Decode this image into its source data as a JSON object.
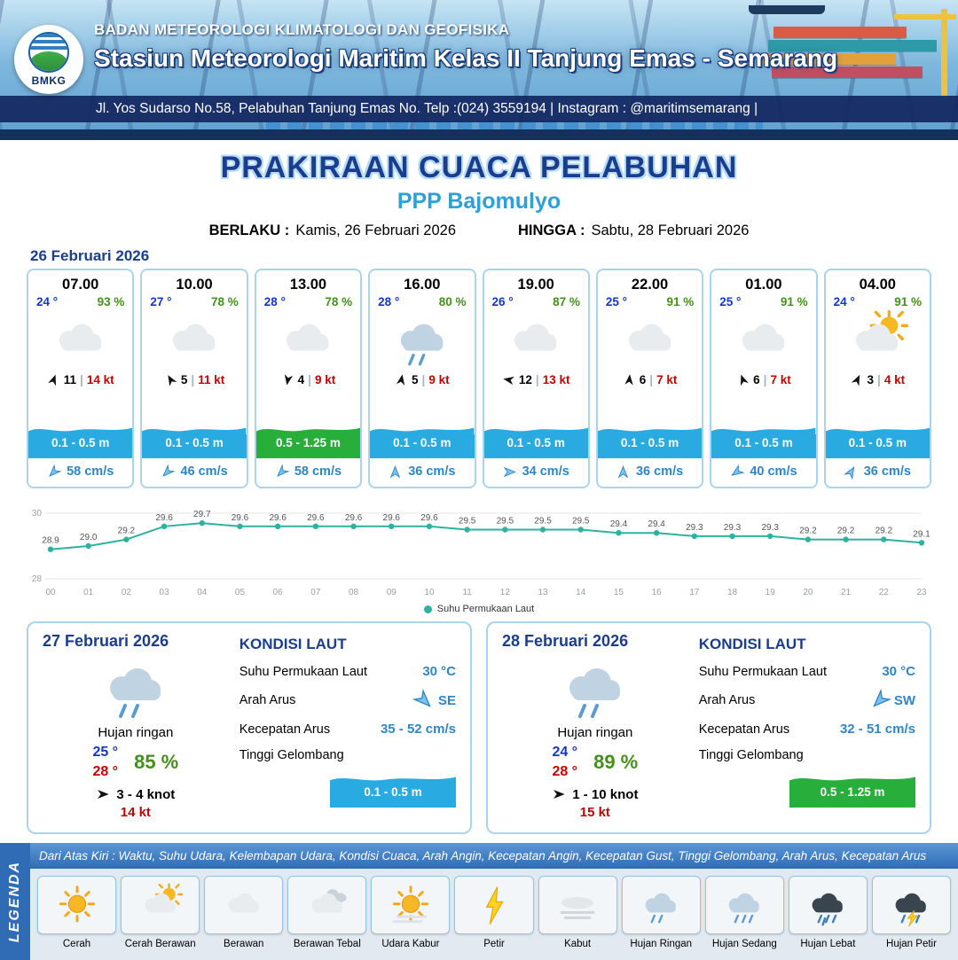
{
  "header": {
    "logo_text": "BMKG",
    "line1": "BADAN METEOROLOGI KLIMATOLOGI DAN GEOFISIKA",
    "line2": "Stasiun Meteorologi Maritim Kelas II Tanjung Emas - Semarang",
    "line3": "Jl. Yos Sudarso No.58, Pelabuhan Tanjung Emas No. Telp :(024) 3559194 | Instagram : @maritimsemarang |"
  },
  "title": {
    "main": "PRAKIRAAN CUACA PELABUHAN",
    "port": "PPP Bajomulyo",
    "berlaku_label": "BERLAKU :",
    "berlaku_value": "Kamis, 26 Februari 2026",
    "hingga_label": "HINGGA :",
    "hingga_value": "Sabtu, 28 Februari 2026"
  },
  "ui": {
    "pipe": "|"
  },
  "forecast": {
    "date_label": "26 Februari 2026",
    "cards": [
      {
        "time": "07.00",
        "temp": "24 °",
        "humidity": "93 %",
        "icon": "berawan",
        "wind_value": "11",
        "wind_speed": "14 kt",
        "wind_deg": 20,
        "wave_height": "0.1 - 0.5 m",
        "wave_color": "blue",
        "current_speed": "58 cm/s",
        "current_deg": 225
      },
      {
        "time": "10.00",
        "temp": "27 °",
        "humidity": "78 %",
        "icon": "berawan",
        "wind_value": "5",
        "wind_speed": "11 kt",
        "wind_deg": -30,
        "wave_height": "0.1 - 0.5 m",
        "wave_color": "blue",
        "current_speed": "46 cm/s",
        "current_deg": 225
      },
      {
        "time": "13.00",
        "temp": "28 °",
        "humidity": "78 %",
        "icon": "berawan",
        "wind_value": "4",
        "wind_speed": "9 kt",
        "wind_deg": 190,
        "wave_height": "0.5 - 1.25 m",
        "wave_color": "green",
        "current_speed": "58 cm/s",
        "current_deg": 225
      },
      {
        "time": "16.00",
        "temp": "28 °",
        "humidity": "80 %",
        "icon": "hujan-ringan",
        "wind_value": "5",
        "wind_speed": "9 kt",
        "wind_deg": 10,
        "wave_height": "0.1 - 0.5 m",
        "wave_color": "blue",
        "current_speed": "36 cm/s",
        "current_deg": 0
      },
      {
        "time": "19.00",
        "temp": "26 °",
        "humidity": "87 %",
        "icon": "berawan",
        "wind_value": "12",
        "wind_speed": "13 kt",
        "wind_deg": 280,
        "wave_height": "0.1 - 0.5 m",
        "wave_color": "blue",
        "current_speed": "34 cm/s",
        "current_deg": 90
      },
      {
        "time": "22.00",
        "temp": "25 °",
        "humidity": "91 %",
        "icon": "berawan",
        "wind_value": "6",
        "wind_speed": "7 kt",
        "wind_deg": 5,
        "wave_height": "0.1 - 0.5 m",
        "wave_color": "blue",
        "current_speed": "36 cm/s",
        "current_deg": 0
      },
      {
        "time": "01.00",
        "temp": "25 °",
        "humidity": "91 %",
        "icon": "berawan",
        "wind_value": "6",
        "wind_speed": "7 kt",
        "wind_deg": -20,
        "wave_height": "0.1 - 0.5 m",
        "wave_color": "blue",
        "current_speed": "40 cm/s",
        "current_deg": 235
      },
      {
        "time": "04.00",
        "temp": "24 °",
        "humidity": "91 %",
        "icon": "cerah-berawan",
        "wind_value": "3",
        "wind_speed": "4 kt",
        "wind_deg": 25,
        "wave_height": "0.1 - 0.5 m",
        "wave_color": "blue",
        "current_speed": "36 cm/s",
        "current_deg": 30
      }
    ]
  },
  "chart_data": {
    "type": "line",
    "series_label": "Suhu Permukaan Laut",
    "x": [
      "00",
      "01",
      "02",
      "03",
      "04",
      "05",
      "06",
      "07",
      "08",
      "09",
      "10",
      "11",
      "12",
      "13",
      "14",
      "15",
      "16",
      "17",
      "18",
      "19",
      "20",
      "21",
      "22",
      "23"
    ],
    "values": [
      28.9,
      29.0,
      29.2,
      29.6,
      29.7,
      29.6,
      29.6,
      29.6,
      29.6,
      29.6,
      29.6,
      29.5,
      29.5,
      29.5,
      29.5,
      29.4,
      29.4,
      29.3,
      29.3,
      29.3,
      29.2,
      29.2,
      29.2,
      29.1
    ],
    "ylim": [
      28,
      30
    ],
    "color": "#2bb3a0",
    "xlabel": "",
    "ylabel": ""
  },
  "days": [
    {
      "date": "27 Februari 2026",
      "icon": "hujan-ringan",
      "condition": "Hujan ringan",
      "temp_min": "25 °",
      "temp_max": "28 °",
      "humidity": "85 %",
      "wind_knot": "3 - 4 knot",
      "wind_deg": 90,
      "gust": "14 kt",
      "sea": {
        "title": "KONDISI LAUT",
        "sst_label": "Suhu Permukaan Laut",
        "sst": "30 °C",
        "current_dir_label": "Arah Arus",
        "current_dir": "SE",
        "current_dir_deg": 135,
        "current_speed_label": "Kecepatan Arus",
        "current_speed": "35 - 52 cm/s",
        "wave_label": "Tinggi Gelombang",
        "wave": "0.1 - 0.5 m",
        "wave_color": "blue"
      }
    },
    {
      "date": "28 Februari 2026",
      "icon": "hujan-ringan",
      "condition": "Hujan ringan",
      "temp_min": "24 °",
      "temp_max": "28 °",
      "humidity": "89 %",
      "wind_knot": "1 - 10 knot",
      "wind_deg": 90,
      "gust": "15 kt",
      "sea": {
        "title": "KONDISI LAUT",
        "sst_label": "Suhu Permukaan Laut",
        "sst": "30 °C",
        "current_dir_label": "Arah Arus",
        "current_dir": "SW",
        "current_dir_deg": 225,
        "current_speed_label": "Kecepatan Arus",
        "current_speed": "32 - 51 cm/s",
        "wave_label": "Tinggi Gelombang",
        "wave": "0.5 - 1.25 m",
        "wave_color": "green"
      }
    }
  ],
  "legend": {
    "title": "LEGENDA",
    "note": "Dari Atas Kiri : Waktu, Suhu Udara, Kelembapan Udara, Kondisi Cuaca, Arah Angin, Kecepatan Angin, Kecepatan Gust, Tinggi Gelombang, Arah Arus, Kecepatan Arus",
    "items": [
      {
        "label": "Cerah",
        "icon": "cerah"
      },
      {
        "label": "Cerah Berawan",
        "icon": "cerah-berawan"
      },
      {
        "label": "Berawan",
        "icon": "berawan"
      },
      {
        "label": "Berawan Tebal",
        "icon": "berawan-tebal"
      },
      {
        "label": "Udara Kabur",
        "icon": "udara-kabur"
      },
      {
        "label": "Petir",
        "icon": "petir"
      },
      {
        "label": "Kabut",
        "icon": "kabut"
      },
      {
        "label": "Hujan Ringan",
        "icon": "hujan-ringan"
      },
      {
        "label": "Hujan Sedang",
        "icon": "hujan-sedang"
      },
      {
        "label": "Hujan Lebat",
        "icon": "hujan-lebat"
      },
      {
        "label": "Hujan Petir",
        "icon": "hujan-petir"
      }
    ]
  }
}
